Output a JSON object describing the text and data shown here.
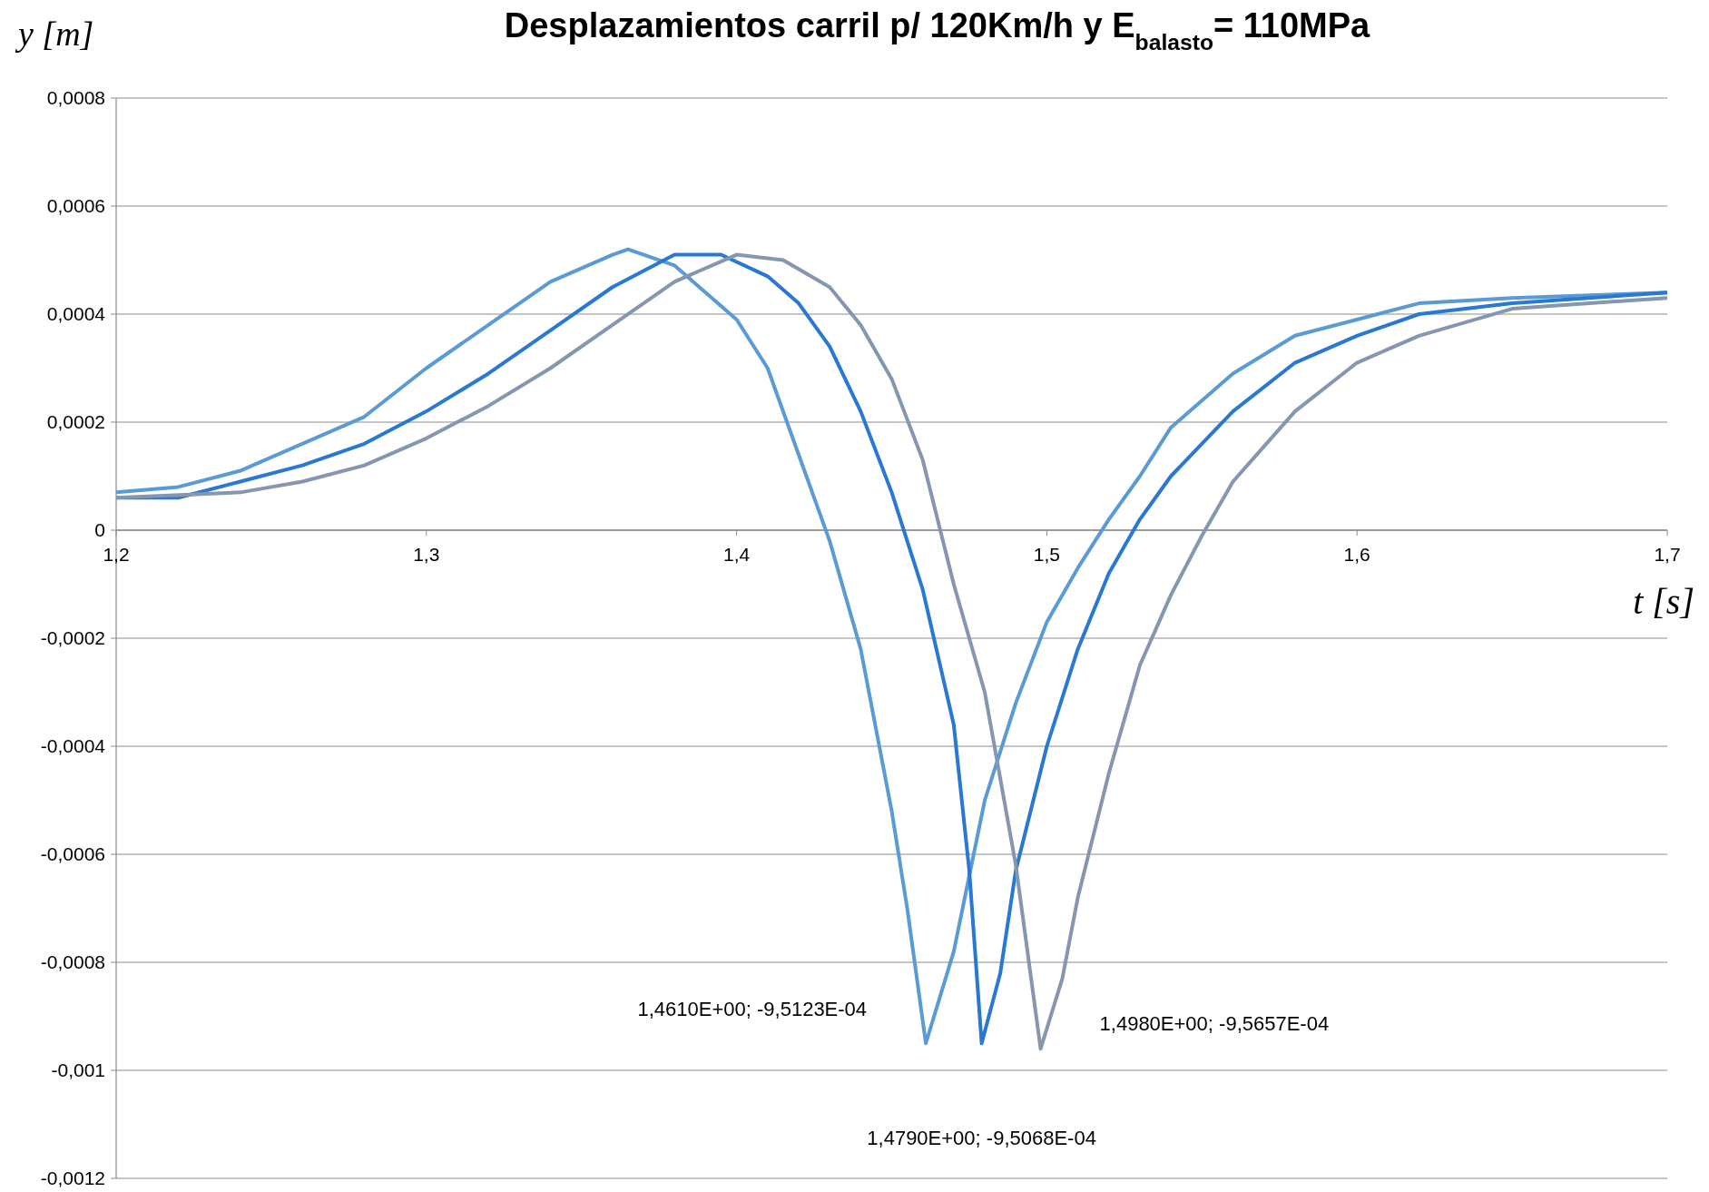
{
  "chart_data": {
    "type": "line",
    "title": "Desplazamientos carril p/ 120Km/h y E$_{balasto}$= 110MPa",
    "xlabel": "t [s]",
    "ylabel": "y  [m]",
    "xlim": [
      1.2,
      1.7
    ],
    "xticks": [
      {
        "value": 1.2,
        "label": "1,2"
      },
      {
        "value": 1.3,
        "label": "1,3"
      },
      {
        "value": 1.4,
        "label": "1,4"
      },
      {
        "value": 1.5,
        "label": "1,5"
      },
      {
        "value": 1.6,
        "label": "1,6"
      },
      {
        "value": 1.7,
        "label": "1,7"
      }
    ],
    "ylim": [
      -0.0012,
      0.0008
    ],
    "yticks": [
      {
        "value": -0.0012,
        "label": "-0,0012"
      },
      {
        "value": -0.001,
        "label": "-0,001"
      },
      {
        "value": -0.0008,
        "label": "-0,0008"
      },
      {
        "value": -0.0006,
        "label": "-0,0006"
      },
      {
        "value": -0.0004,
        "label": "-0,0004"
      },
      {
        "value": -0.0002,
        "label": "-0,0002"
      },
      0,
      {
        "value": 0.0002,
        "label": "0,0002"
      },
      {
        "value": 0.0004,
        "label": "0,0004"
      },
      {
        "value": 0.0006,
        "label": "0,0006"
      },
      {
        "value": 0.0008,
        "label": "0,0008"
      }
    ],
    "grid": "y",
    "marker": "none",
    "line_style": "solid",
    "series": [
      {
        "color": "#5b9bd5",
        "x": [
          1.2,
          1.22,
          1.24,
          1.26,
          1.28,
          1.3,
          1.32,
          1.34,
          1.36,
          1.365,
          1.38,
          1.39,
          1.4,
          1.41,
          1.42,
          1.43,
          1.44,
          1.45,
          1.455,
          1.461,
          1.47,
          1.48,
          1.49,
          1.5,
          1.51,
          1.52,
          1.53,
          1.54,
          1.56,
          1.58,
          1.6,
          1.62,
          1.65,
          1.7
        ],
        "values": [
          7e-05,
          8e-05,
          0.00011,
          0.00016,
          0.00021,
          0.0003,
          0.00038,
          0.00046,
          0.00051,
          0.00052,
          0.00049,
          0.00044,
          0.00039,
          0.0003,
          0.00014,
          -2e-05,
          -0.00022,
          -0.00052,
          -0.0007,
          -0.00095,
          -0.00078,
          -0.0005,
          -0.00032,
          -0.00017,
          -7e-05,
          2e-05,
          0.0001,
          0.00019,
          0.00029,
          0.00036,
          0.00039,
          0.00042,
          0.00043,
          0.00044
        ]
      },
      {
        "color": "#2878d4",
        "x": [
          1.2,
          1.22,
          1.24,
          1.26,
          1.28,
          1.3,
          1.32,
          1.34,
          1.36,
          1.38,
          1.395,
          1.41,
          1.42,
          1.43,
          1.44,
          1.45,
          1.46,
          1.47,
          1.475,
          1.479,
          1.485,
          1.49,
          1.5,
          1.51,
          1.52,
          1.53,
          1.54,
          1.56,
          1.58,
          1.6,
          1.62,
          1.65,
          1.7
        ],
        "values": [
          6e-05,
          6e-05,
          9e-05,
          0.00012,
          0.00016,
          0.00022,
          0.00029,
          0.00037,
          0.00045,
          0.00051,
          0.00051,
          0.00047,
          0.00042,
          0.00034,
          0.00022,
          7e-05,
          -0.00011,
          -0.00036,
          -0.00063,
          -0.00095,
          -0.00082,
          -0.00063,
          -0.0004,
          -0.00022,
          -8e-05,
          2e-05,
          0.0001,
          0.00022,
          0.00031,
          0.00036,
          0.0004,
          0.00042,
          0.00044
        ]
      },
      {
        "color": "#8496b0",
        "x": [
          1.2,
          1.24,
          1.26,
          1.28,
          1.3,
          1.32,
          1.34,
          1.36,
          1.38,
          1.4,
          1.415,
          1.43,
          1.44,
          1.45,
          1.46,
          1.47,
          1.48,
          1.49,
          1.498,
          1.505,
          1.51,
          1.52,
          1.53,
          1.54,
          1.55,
          1.56,
          1.58,
          1.6,
          1.62,
          1.65,
          1.7
        ],
        "values": [
          6e-05,
          7e-05,
          9e-05,
          0.00012,
          0.00017,
          0.00023,
          0.0003,
          0.00038,
          0.00046,
          0.00051,
          0.0005,
          0.00045,
          0.00038,
          0.00028,
          0.00013,
          -0.0001,
          -0.0003,
          -0.00062,
          -0.00096,
          -0.00083,
          -0.00068,
          -0.00045,
          -0.00025,
          -0.00012,
          -1e-05,
          9e-05,
          0.00022,
          0.00031,
          0.00036,
          0.00041,
          0.00043
        ]
      }
    ],
    "annotations": [
      "1,4610E+00; -9,5123E-04",
      "1,4790E+00; -9,5068E-04",
      "1,4980E+00; -9,5657E-04"
    ]
  }
}
